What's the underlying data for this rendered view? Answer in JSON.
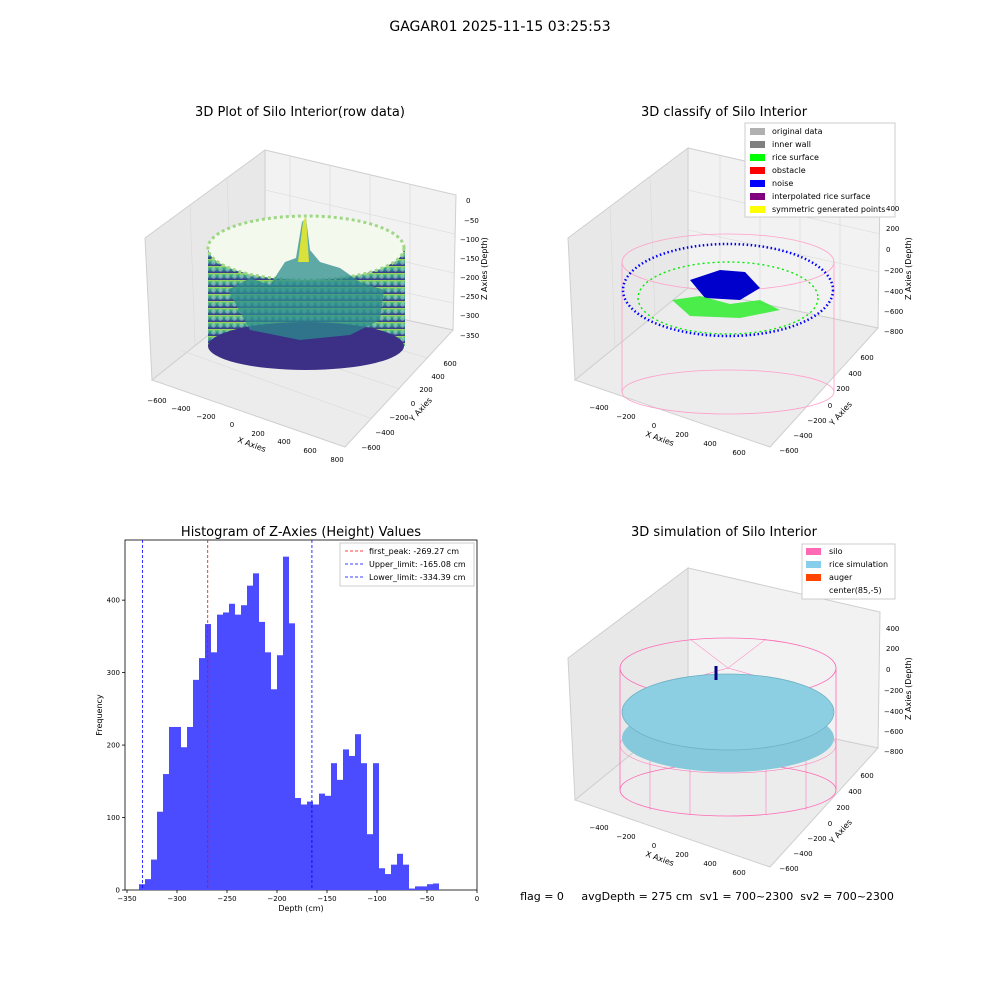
{
  "suptitle": "GAGAR01 2025-11-15 03:25:53",
  "footer": "flag = 0     avgDepth = 275 cm  sv1 = 700~2300  sv2 = 700~2300",
  "panels": {
    "raw": {
      "title": "3D Plot of Silo Interior(row data)",
      "xlabel": "X Axies",
      "ylabel": "Y Axies",
      "zlabel": "Z Axies (Depth)",
      "xticks": [
        "−600",
        "−400",
        "−200",
        "0",
        "200",
        "400",
        "600",
        "800"
      ],
      "yticks": [
        "−600",
        "−400",
        "−200",
        "0",
        "200",
        "400",
        "600"
      ],
      "zticks": [
        "0",
        "−50",
        "−100",
        "−150",
        "−200",
        "−250",
        "−300",
        "−350"
      ]
    },
    "classify": {
      "title": "3D classify of Silo Interior",
      "xlabel": "X Axies",
      "ylabel": "Y Axies",
      "zlabel": "Z Axies (Depth)",
      "xticks": [
        "−400",
        "−200",
        "0",
        "200",
        "400",
        "600"
      ],
      "yticks": [
        "−600",
        "−400",
        "−200",
        "0",
        "200",
        "400",
        "600"
      ],
      "zticks": [
        "400",
        "200",
        "0",
        "−200",
        "−400",
        "−600",
        "−800"
      ],
      "legend": [
        {
          "label": "original data",
          "color": "#b0b0b0"
        },
        {
          "label": "inner wall",
          "color": "#808080"
        },
        {
          "label": "rice surface",
          "color": "#00ff00"
        },
        {
          "label": "obstacle",
          "color": "#ff0000"
        },
        {
          "label": "noise",
          "color": "#0000ff"
        },
        {
          "label": "interpolated rice surface",
          "color": "#800080"
        },
        {
          "label": "symmetric generated points",
          "color": "#ffff00"
        }
      ]
    },
    "simulation": {
      "title": "3D simulation of Silo Interior",
      "xlabel": "X Axies",
      "ylabel": "Y Axies",
      "zlabel": "Z Axies (Depth)",
      "xticks": [
        "−400",
        "−200",
        "0",
        "200",
        "400",
        "600"
      ],
      "yticks": [
        "−600",
        "−400",
        "−200",
        "0",
        "200",
        "400",
        "600"
      ],
      "zticks": [
        "400",
        "200",
        "0",
        "−200",
        "−400",
        "−600",
        "−800"
      ],
      "legend": [
        {
          "label": "silo",
          "color": "#ff69b4"
        },
        {
          "label": "rice simulation",
          "color": "#87ceeb"
        },
        {
          "label": "auger",
          "color": "#ff4500"
        },
        {
          "label": "center(85,-5)",
          "color": "#ffffff"
        }
      ]
    }
  },
  "chart_data": [
    {
      "type": "bar",
      "title": "Histogram of Z-Axies (Height) Values",
      "xlabel": "Depth (cm)",
      "ylabel": "Frequency",
      "xlim": [
        -352,
        0
      ],
      "ylim": [
        0,
        483
      ],
      "bin_start": -338,
      "bin_width": 6,
      "bar_color": "#4b4bff",
      "xticks": [
        -350,
        -300,
        -250,
        -200,
        -150,
        -100,
        -50,
        0
      ],
      "xtick_labels": [
        "−350",
        "−300",
        "−250",
        "−200",
        "−150",
        "−100",
        "−50",
        "0"
      ],
      "yticks": [
        0,
        100,
        200,
        300,
        400
      ],
      "ytick_labels": [
        "0",
        "100",
        "200",
        "300",
        "400"
      ],
      "values": [
        8,
        15,
        42,
        108,
        160,
        225,
        225,
        197,
        225,
        290,
        320,
        367,
        328,
        380,
        383,
        395,
        380,
        393,
        420,
        437,
        370,
        328,
        277,
        324,
        460,
        368,
        127,
        118,
        122,
        118,
        133,
        130,
        175,
        152,
        194,
        185,
        215,
        175,
        77,
        175,
        30,
        22,
        35,
        50,
        35,
        2,
        5,
        5,
        8,
        9
      ],
      "lines": [
        {
          "label": "first_peak: -269.27 cm",
          "x": -269.27,
          "color": "#ff0000"
        },
        {
          "label": "Upper_limit: -165.08 cm",
          "x": -165.08,
          "color": "#0000ff"
        },
        {
          "label": "Lower_limit: -334.39 cm",
          "x": -334.39,
          "color": "#0000ff"
        }
      ],
      "legend_position": "top-right"
    }
  ]
}
